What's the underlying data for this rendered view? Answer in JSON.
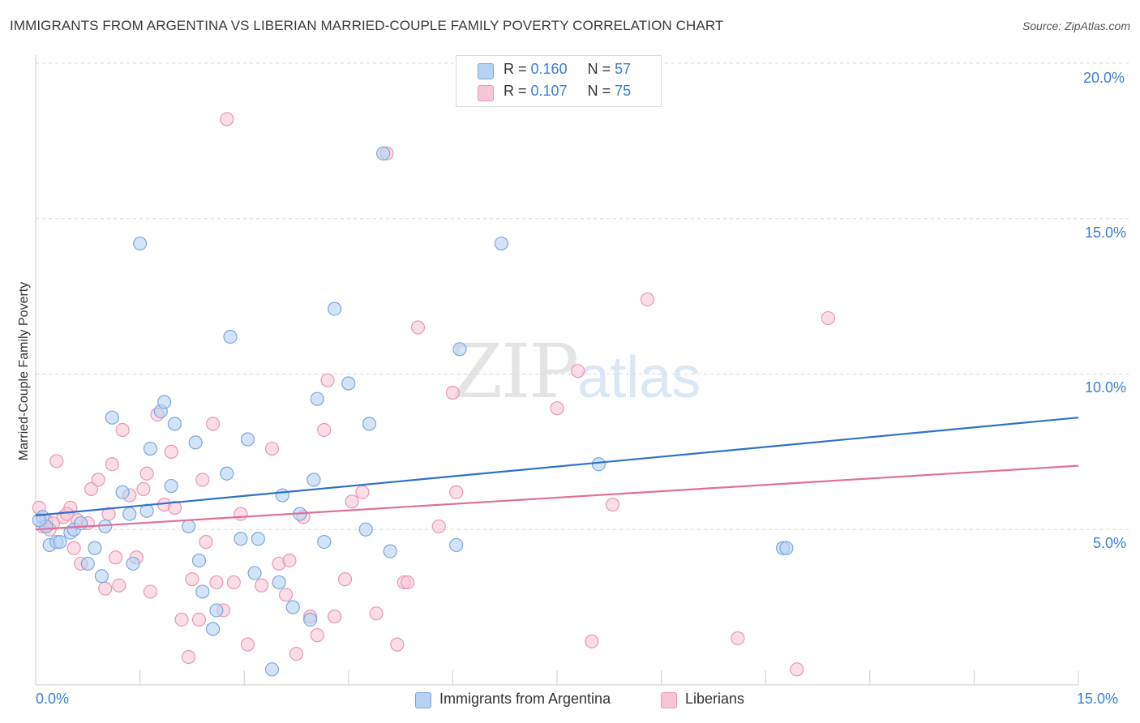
{
  "title": "IMMIGRANTS FROM ARGENTINA VS LIBERIAN MARRIED-COUPLE FAMILY POVERTY CORRELATION CHART",
  "source_label": "Source:",
  "source_value": "ZipAtlas.com",
  "watermark": {
    "zip": "ZIP",
    "atlas": "atlas"
  },
  "colors": {
    "blue_fill": "#b7d2f3",
    "blue_stroke": "#7aa8e0",
    "blue_line": "#2f72c8",
    "pink_fill": "#f7c6d5",
    "pink_stroke": "#ea97b1",
    "pink_line": "#e0709a",
    "grid": "#d8d8d8",
    "tick_text": "#3b7fd4"
  },
  "legend_top": [
    {
      "r_label": "R =",
      "r_value": "0.160",
      "n_label": "N =",
      "n_value": "57"
    },
    {
      "r_label": "R =",
      "r_value": "0.107",
      "n_label": "N =",
      "n_value": "75"
    }
  ],
  "chart_data": {
    "type": "scatter",
    "title": "IMMIGRANTS FROM ARGENTINA VS LIBERIAN MARRIED-COUPLE FAMILY POVERTY CORRELATION CHART",
    "xlabel": "",
    "ylabel": "Married-Couple Family Poverty",
    "xlim": [
      0,
      15
    ],
    "ylim": [
      0,
      20
    ],
    "x_tick_labels": [
      "0.0%",
      "15.0%"
    ],
    "y_tick_labels": [
      "5.0%",
      "10.0%",
      "15.0%",
      "20.0%"
    ],
    "y_ticks": [
      5,
      10,
      15,
      20
    ],
    "grid": true,
    "legend_position": "bottom",
    "series": [
      {
        "name": "Immigrants from Argentina",
        "color": "#b7d2f3",
        "trend": {
          "x": [
            0,
            15
          ],
          "y": [
            5.45,
            8.6
          ]
        },
        "points": [
          [
            0.1,
            5.4
          ],
          [
            0.15,
            5.1
          ],
          [
            0.2,
            4.5
          ],
          [
            0.3,
            4.6
          ],
          [
            0.35,
            4.6
          ],
          [
            0.5,
            4.9
          ],
          [
            0.55,
            5.0
          ],
          [
            0.65,
            5.2
          ],
          [
            0.75,
            3.9
          ],
          [
            0.85,
            4.4
          ],
          [
            0.95,
            3.5
          ],
          [
            1.0,
            5.1
          ],
          [
            1.1,
            8.6
          ],
          [
            1.25,
            6.2
          ],
          [
            1.35,
            5.5
          ],
          [
            1.4,
            3.9
          ],
          [
            1.5,
            14.2
          ],
          [
            1.6,
            5.6
          ],
          [
            1.65,
            7.6
          ],
          [
            1.8,
            8.8
          ],
          [
            1.85,
            9.1
          ],
          [
            1.95,
            6.4
          ],
          [
            2.0,
            8.4
          ],
          [
            2.2,
            5.1
          ],
          [
            2.3,
            7.8
          ],
          [
            2.35,
            4.0
          ],
          [
            2.4,
            3.0
          ],
          [
            2.55,
            1.8
          ],
          [
            2.6,
            2.4
          ],
          [
            2.75,
            6.8
          ],
          [
            2.8,
            11.2
          ],
          [
            2.95,
            4.7
          ],
          [
            3.05,
            7.9
          ],
          [
            3.15,
            3.6
          ],
          [
            3.2,
            4.7
          ],
          [
            3.4,
            0.5
          ],
          [
            3.5,
            3.3
          ],
          [
            3.55,
            6.1
          ],
          [
            3.7,
            2.5
          ],
          [
            3.8,
            5.5
          ],
          [
            3.95,
            2.1
          ],
          [
            4.0,
            6.6
          ],
          [
            4.05,
            9.2
          ],
          [
            4.15,
            4.6
          ],
          [
            4.3,
            12.1
          ],
          [
            4.5,
            9.7
          ],
          [
            4.75,
            5.0
          ],
          [
            4.8,
            8.4
          ],
          [
            5.0,
            17.1
          ],
          [
            5.1,
            4.3
          ],
          [
            6.05,
            4.5
          ],
          [
            6.1,
            10.8
          ],
          [
            6.7,
            14.2
          ],
          [
            8.1,
            7.1
          ],
          [
            10.75,
            4.4
          ],
          [
            10.8,
            4.4
          ],
          [
            0.05,
            5.3
          ]
        ]
      },
      {
        "name": "Liberians",
        "color": "#f7c6d5",
        "trend": {
          "x": [
            0,
            15
          ],
          "y": [
            5.0,
            7.05
          ]
        },
        "points": [
          [
            0.05,
            5.7
          ],
          [
            0.1,
            5.1
          ],
          [
            0.15,
            5.3
          ],
          [
            0.25,
            5.2
          ],
          [
            0.3,
            7.2
          ],
          [
            0.4,
            5.4
          ],
          [
            0.5,
            5.7
          ],
          [
            0.55,
            4.4
          ],
          [
            0.6,
            5.3
          ],
          [
            0.65,
            3.9
          ],
          [
            0.75,
            5.2
          ],
          [
            0.8,
            6.3
          ],
          [
            0.9,
            6.6
          ],
          [
            1.0,
            3.1
          ],
          [
            1.05,
            5.5
          ],
          [
            1.1,
            7.1
          ],
          [
            1.2,
            3.2
          ],
          [
            1.25,
            8.2
          ],
          [
            1.35,
            6.1
          ],
          [
            1.45,
            4.1
          ],
          [
            1.55,
            6.3
          ],
          [
            1.6,
            6.8
          ],
          [
            1.65,
            3.0
          ],
          [
            1.75,
            8.7
          ],
          [
            1.85,
            5.8
          ],
          [
            1.95,
            7.5
          ],
          [
            2.0,
            5.7
          ],
          [
            2.1,
            2.1
          ],
          [
            2.2,
            0.9
          ],
          [
            2.25,
            3.4
          ],
          [
            2.35,
            2.1
          ],
          [
            2.45,
            4.6
          ],
          [
            2.55,
            8.4
          ],
          [
            2.6,
            3.3
          ],
          [
            2.7,
            2.4
          ],
          [
            2.75,
            18.2
          ],
          [
            2.85,
            3.3
          ],
          [
            2.95,
            5.5
          ],
          [
            3.05,
            1.3
          ],
          [
            3.25,
            3.2
          ],
          [
            3.4,
            7.6
          ],
          [
            3.5,
            3.9
          ],
          [
            3.6,
            2.9
          ],
          [
            3.75,
            1.0
          ],
          [
            3.85,
            5.4
          ],
          [
            3.95,
            2.2
          ],
          [
            4.05,
            1.6
          ],
          [
            4.15,
            8.2
          ],
          [
            4.2,
            9.8
          ],
          [
            4.3,
            2.2
          ],
          [
            4.45,
            3.4
          ],
          [
            4.55,
            5.9
          ],
          [
            4.7,
            6.2
          ],
          [
            4.9,
            2.3
          ],
          [
            5.05,
            17.1
          ],
          [
            5.2,
            1.3
          ],
          [
            5.3,
            3.3
          ],
          [
            5.35,
            3.3
          ],
          [
            5.5,
            11.5
          ],
          [
            5.8,
            5.1
          ],
          [
            6.0,
            9.4
          ],
          [
            6.05,
            6.2
          ],
          [
            7.5,
            8.9
          ],
          [
            7.8,
            10.1
          ],
          [
            8.0,
            1.4
          ],
          [
            8.3,
            5.8
          ],
          [
            8.8,
            12.4
          ],
          [
            10.1,
            1.5
          ],
          [
            10.95,
            0.5
          ],
          [
            11.4,
            11.8
          ],
          [
            0.2,
            5.0
          ],
          [
            0.45,
            5.5
          ],
          [
            1.15,
            4.1
          ],
          [
            2.4,
            6.6
          ],
          [
            3.65,
            4.0
          ]
        ]
      }
    ]
  }
}
